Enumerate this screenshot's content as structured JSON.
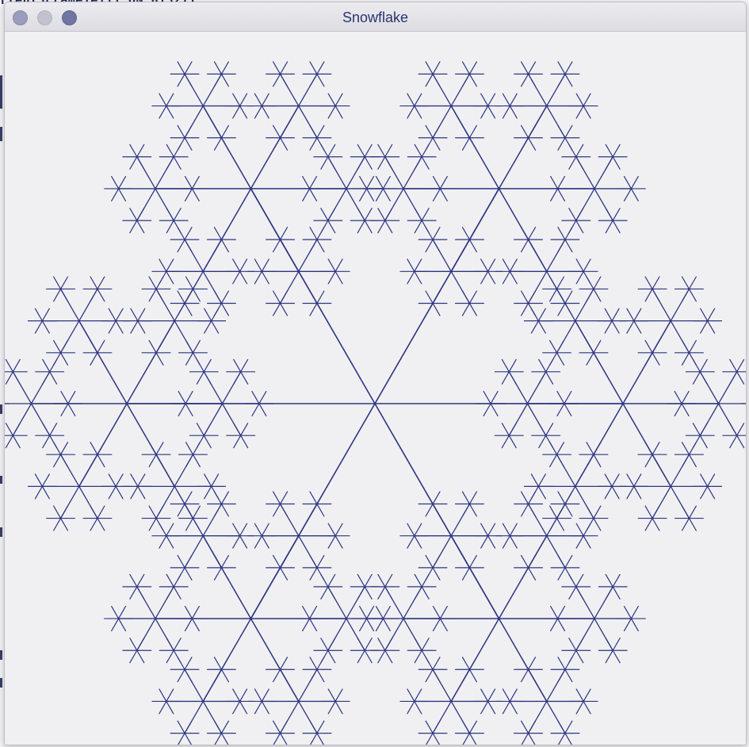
{
  "window": {
    "title": "Snowflake"
  },
  "background": {
    "behind_text": "rtent3Frame1e111 ON 013271"
  },
  "drawing": {
    "subject": "snowflake-fractal",
    "branches": 6,
    "depth": 3,
    "stroke_color": "#2e3580",
    "background_color": "#f0f0f2"
  },
  "colors": {
    "accent": "#2e3580",
    "title_text": "#2c3370"
  }
}
